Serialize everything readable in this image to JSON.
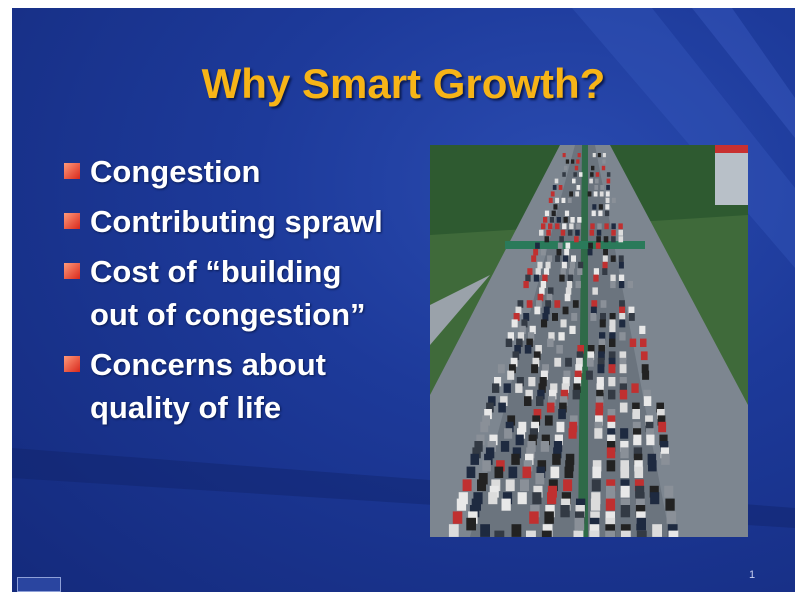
{
  "slide": {
    "title": "Why Smart Growth?",
    "bullets": [
      "Congestion",
      "Contributing sprawl",
      "Cost of “building out of congestion”",
      "Concerns about quality of life"
    ],
    "page_number": "1"
  }
}
